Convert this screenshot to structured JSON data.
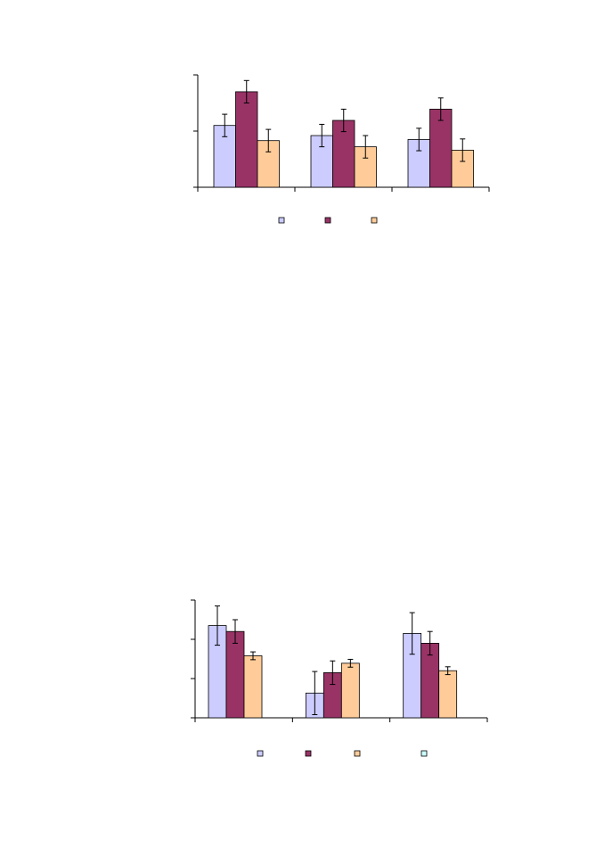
{
  "colors": {
    "series1": "#ccccff",
    "series2": "#993366",
    "series3": "#ffcc99",
    "series4": "#ccffff",
    "axis": "#000000",
    "bar_stroke": "#000000"
  },
  "chart_data": [
    {
      "type": "bar",
      "title": "",
      "xlabel": "",
      "ylabel": "",
      "categories": [
        "",
        "",
        ""
      ],
      "ylim": [
        0,
        2
      ],
      "grid": false,
      "legend_position": "bottom",
      "series": [
        {
          "color": "#ccccff",
          "values": [
            1.1,
            0.92,
            0.85
          ],
          "errors": [
            0.2,
            0.2,
            0.2
          ]
        },
        {
          "color": "#993366",
          "values": [
            1.7,
            1.19,
            1.39
          ],
          "errors": [
            0.2,
            0.2,
            0.2
          ]
        },
        {
          "color": "#ffcc99",
          "values": [
            0.83,
            0.72,
            0.66
          ],
          "errors": [
            0.2,
            0.2,
            0.2
          ]
        }
      ]
    },
    {
      "type": "bar",
      "title": "",
      "xlabel": "",
      "ylabel": "",
      "categories": [
        "",
        "",
        ""
      ],
      "ylim": [
        0,
        3
      ],
      "grid": false,
      "legend_position": "bottom",
      "series": [
        {
          "color": "#ccccff",
          "values": [
            2.35,
            0.63,
            2.15
          ],
          "errors": [
            0.5,
            0.55,
            0.53
          ]
        },
        {
          "color": "#993366",
          "values": [
            2.2,
            1.15,
            1.9
          ],
          "errors": [
            0.3,
            0.3,
            0.3
          ]
        },
        {
          "color": "#ffcc99",
          "values": [
            1.58,
            1.39,
            1.2
          ],
          "errors": [
            0.1,
            0.1,
            0.1
          ]
        },
        {
          "color": "#ccffff",
          "values": [
            0,
            0,
            0
          ],
          "errors": [
            0,
            0,
            0
          ]
        }
      ]
    }
  ]
}
